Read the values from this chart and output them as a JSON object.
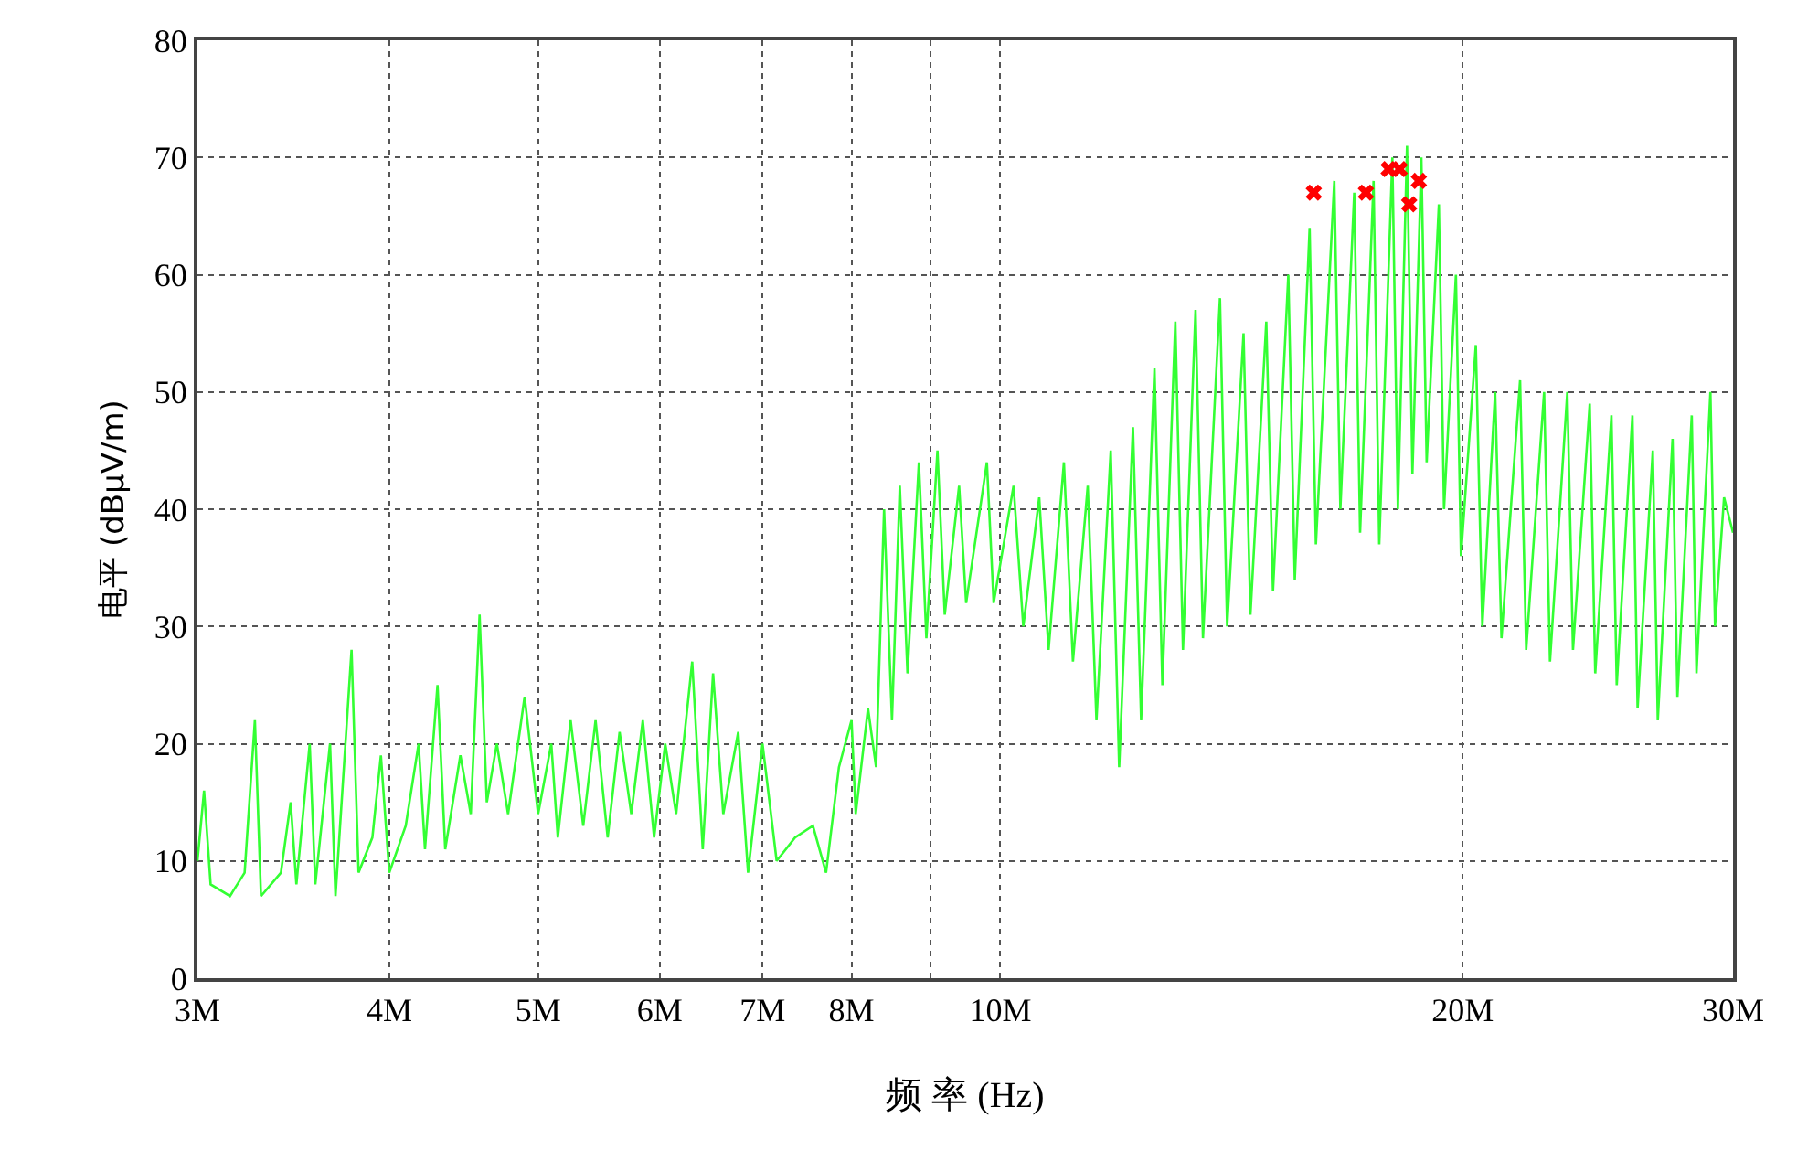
{
  "chart_data": {
    "type": "line",
    "xlabel": "频 率 (Hz)",
    "ylabel": "电平 (dBμV/m)",
    "log": "x",
    "grid": true,
    "xlim": [
      3,
      30
    ],
    "ylim": [
      0,
      80
    ],
    "xticks": [
      {
        "value": 3,
        "label": "3M"
      },
      {
        "value": 4,
        "label": "4M"
      },
      {
        "value": 5,
        "label": "5M"
      },
      {
        "value": 6,
        "label": "6M"
      },
      {
        "value": 7,
        "label": "7M"
      },
      {
        "value": 8,
        "label": "8M"
      },
      {
        "value": 9,
        "label": null
      },
      {
        "value": 10,
        "label": "10M"
      },
      {
        "value": 20,
        "label": "20M"
      },
      {
        "value": 30,
        "label": "30M"
      }
    ],
    "yticks": [
      0,
      10,
      20,
      30,
      40,
      50,
      60,
      70,
      80
    ],
    "series": [
      {
        "color": "#33ff33",
        "marker": "none",
        "line_style": "solid",
        "x": [
          3.0,
          3.03,
          3.06,
          3.15,
          3.22,
          3.27,
          3.3,
          3.4,
          3.45,
          3.48,
          3.55,
          3.58,
          3.66,
          3.69,
          3.78,
          3.82,
          3.9,
          3.95,
          4.0,
          4.1,
          4.18,
          4.22,
          4.3,
          4.35,
          4.45,
          4.52,
          4.58,
          4.63,
          4.7,
          4.78,
          4.9,
          5.0,
          5.1,
          5.15,
          5.25,
          5.35,
          5.45,
          5.55,
          5.65,
          5.75,
          5.85,
          5.95,
          6.05,
          6.15,
          6.3,
          6.4,
          6.5,
          6.6,
          6.75,
          6.85,
          7.0,
          7.15,
          7.35,
          7.55,
          7.7,
          7.85,
          8.0,
          8.05,
          8.2,
          8.3,
          8.4,
          8.5,
          8.6,
          8.7,
          8.85,
          8.95,
          9.1,
          9.2,
          9.4,
          9.5,
          9.8,
          9.9,
          10.2,
          10.35,
          10.6,
          10.75,
          11.0,
          11.15,
          11.4,
          11.55,
          11.8,
          11.95,
          12.2,
          12.35,
          12.6,
          12.75,
          13.0,
          13.15,
          13.4,
          13.55,
          13.9,
          14.05,
          14.4,
          14.55,
          14.9,
          15.05,
          15.4,
          15.55,
          15.9,
          16.05,
          16.5,
          16.65,
          17.0,
          17.15,
          17.5,
          17.65,
          18.0,
          18.15,
          18.4,
          18.55,
          18.8,
          18.95,
          19.3,
          19.45,
          19.8,
          19.95,
          20.4,
          20.6,
          21.0,
          21.2,
          21.8,
          22.0,
          22.6,
          22.8,
          23.4,
          23.6,
          24.2,
          24.4,
          25.0,
          25.2,
          25.8,
          26.0,
          26.6,
          26.8,
          27.4,
          27.6,
          28.2,
          28.4,
          29.0,
          29.2,
          29.6,
          30.0
        ],
        "values": [
          10,
          16,
          8,
          7,
          9,
          22,
          7,
          9,
          15,
          8,
          20,
          8,
          20,
          7,
          28,
          9,
          12,
          19,
          9,
          13,
          20,
          11,
          25,
          11,
          19,
          14,
          31,
          15,
          20,
          14,
          24,
          14,
          20,
          12,
          22,
          13,
          22,
          12,
          21,
          14,
          22,
          12,
          20,
          14,
          27,
          11,
          26,
          14,
          21,
          9,
          20,
          10,
          12,
          13,
          9,
          18,
          22,
          14,
          23,
          18,
          40,
          22,
          42,
          26,
          44,
          29,
          45,
          31,
          42,
          32,
          44,
          32,
          42,
          30,
          41,
          28,
          44,
          27,
          42,
          22,
          45,
          18,
          47,
          22,
          52,
          25,
          56,
          28,
          57,
          29,
          58,
          30,
          55,
          31,
          56,
          33,
          60,
          34,
          64,
          37,
          68,
          40,
          67,
          38,
          68,
          37,
          70,
          40,
          71,
          43,
          70,
          44,
          66,
          40,
          60,
          36,
          54,
          30,
          50,
          29,
          51,
          28,
          50,
          27,
          50,
          28,
          49,
          26,
          48,
          25,
          48,
          23,
          45,
          22,
          46,
          24,
          48,
          26,
          50,
          30,
          41,
          38
        ]
      },
      {
        "type": "scatter",
        "color": "#ff0000",
        "marker": "cross",
        "x": [
          16.0,
          17.3,
          17.9,
          18.2,
          18.46,
          18.73
        ],
        "values": [
          67,
          67,
          69,
          69,
          66,
          68
        ]
      }
    ]
  }
}
